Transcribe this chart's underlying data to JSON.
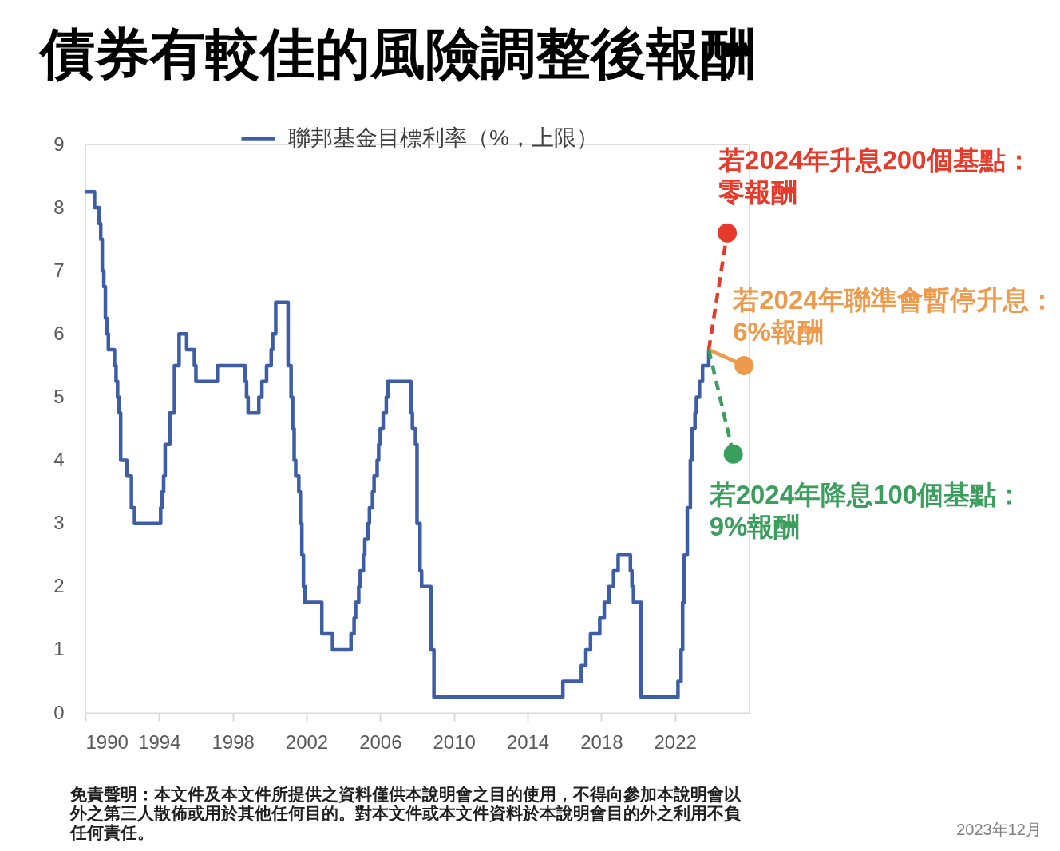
{
  "chart_data": {
    "type": "step",
    "title": "債券有較佳的風險調整後報酬",
    "xlim": [
      "1990-01",
      "2026-01"
    ],
    "xticks": [
      "1990",
      "1994",
      "1998",
      "2002",
      "2006",
      "2010",
      "2014",
      "2018",
      "2022"
    ],
    "ylim": [
      0,
      9
    ],
    "yticks": [
      0,
      1,
      2,
      3,
      4,
      5,
      6,
      7,
      8,
      9
    ],
    "legend": "top",
    "series": [
      {
        "name": "聯邦基金目標利率（%，上限）",
        "color": "#3d5ea6",
        "x": [
          "1990-01",
          "1990-07",
          "1990-10",
          "1990-11",
          "1990-12",
          "1991-01",
          "1991-02",
          "1991-03",
          "1991-04",
          "1991-08",
          "1991-09",
          "1991-10",
          "1991-11",
          "1991-12",
          "1992-04",
          "1992-07",
          "1992-09",
          "1994-02",
          "1994-03",
          "1994-04",
          "1994-05",
          "1994-08",
          "1994-11",
          "1995-02",
          "1995-07",
          "1995-12",
          "1996-01",
          "1997-03",
          "1998-09",
          "1998-10",
          "1998-11",
          "1999-06",
          "1999-08",
          "1999-11",
          "2000-02",
          "2000-03",
          "2000-05",
          "2001-01",
          "2001-03",
          "2001-04",
          "2001-05",
          "2001-06",
          "2001-08",
          "2001-09",
          "2001-10",
          "2001-11",
          "2001-12",
          "2002-11",
          "2003-06",
          "2004-06",
          "2004-08",
          "2004-09",
          "2004-11",
          "2004-12",
          "2005-02",
          "2005-03",
          "2005-05",
          "2005-06",
          "2005-08",
          "2005-09",
          "2005-11",
          "2005-12",
          "2006-01",
          "2006-03",
          "2006-05",
          "2006-06",
          "2007-09",
          "2007-10",
          "2007-12",
          "2008-01",
          "2008-03",
          "2008-04",
          "2008-10",
          "2008-12",
          "2015-12",
          "2016-12",
          "2017-03",
          "2017-06",
          "2017-12",
          "2018-03",
          "2018-06",
          "2018-09",
          "2018-12",
          "2019-08",
          "2019-09",
          "2019-10",
          "2020-03",
          "2022-03",
          "2022-05",
          "2022-06",
          "2022-07",
          "2022-09",
          "2022-11",
          "2022-12",
          "2023-02",
          "2023-03",
          "2023-05",
          "2023-07",
          "2023-11"
        ],
        "values": [
          8.25,
          8,
          7.75,
          7.5,
          7,
          6.75,
          6.25,
          6,
          5.75,
          5.5,
          5.25,
          5,
          4.75,
          4,
          3.75,
          3.25,
          3,
          3.25,
          3.5,
          3.75,
          4.25,
          4.75,
          5.5,
          6,
          5.75,
          5.5,
          5.25,
          5.5,
          5.25,
          5,
          4.75,
          5,
          5.25,
          5.5,
          5.75,
          6,
          6.5,
          5.5,
          5,
          4.5,
          4,
          3.75,
          3.5,
          3,
          2.5,
          2,
          1.75,
          1.25,
          1,
          1.25,
          1.5,
          1.75,
          2,
          2.25,
          2.5,
          2.75,
          3,
          3.25,
          3.5,
          3.75,
          4,
          4.25,
          4.5,
          4.75,
          5,
          5.25,
          4.75,
          4.5,
          4.25,
          3,
          2.25,
          2,
          1,
          0.25,
          0.5,
          0.75,
          1,
          1.25,
          1.5,
          1.75,
          2,
          2.25,
          2.5,
          2.25,
          2,
          1.75,
          0.25,
          0.5,
          1,
          1.75,
          2.5,
          3.25,
          4,
          4.5,
          4.75,
          5,
          5.25,
          5.5,
          5.75
        ]
      },
      {
        "name": "若2024年升息200個基點：零報酬",
        "type": "line",
        "color": "#e63b2a",
        "line_style": "dashed",
        "x": [
          "2023-11",
          "2024-11"
        ],
        "values": [
          5.75,
          7.6
        ]
      },
      {
        "name": "若2024年聯準會暫停升息：6%報酬",
        "type": "line",
        "color": "#ed9a4c",
        "line_style": "solid",
        "x": [
          "2023-11",
          "2025-10"
        ],
        "values": [
          5.75,
          5.5
        ]
      },
      {
        "name": "若2024年降息100個基點：9%報酬",
        "type": "line",
        "color": "#3a9e5c",
        "line_style": "dashed",
        "x": [
          "2023-11",
          "2025-03"
        ],
        "values": [
          5.75,
          4.1
        ]
      },
      {
        "type": "scatter",
        "marker": "circle",
        "colors": [
          "#e63b2a",
          "#ed9a4c",
          "#3a9e5c"
        ],
        "x": [
          "2024-11",
          "2025-10",
          "2025-03"
        ],
        "values": [
          7.6,
          5.5,
          4.1
        ]
      }
    ],
    "annotations": [
      "免責聲明：本文件及本文件所提供之資料僅供本說明會之目的使用，不得向參加本說明會以外之第三人散佈或用於其他任何目的。對本文件或本文件資料於本說明會目的外之利用不負任何責任。",
      "2023年12月"
    ]
  }
}
